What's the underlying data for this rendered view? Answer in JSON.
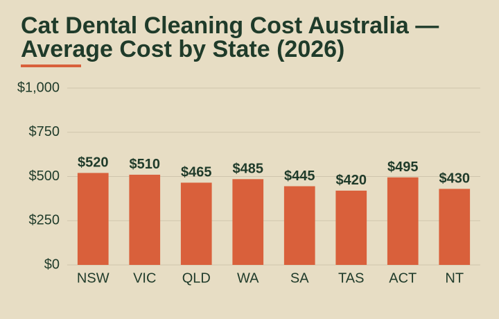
{
  "chart_data": {
    "type": "bar",
    "title": "Cat Dental Cleaning Cost Australia — Average Cost by State (2026)",
    "categories": [
      "NSW",
      "VIC",
      "QLD",
      "WA",
      "SA",
      "TAS",
      "ACT",
      "NT"
    ],
    "values": [
      520,
      510,
      465,
      485,
      445,
      420,
      495,
      430
    ],
    "value_labels": [
      "$520",
      "$510",
      "$465",
      "$485",
      "$445",
      "$420",
      "$495",
      "$430"
    ],
    "color": "#d9603b",
    "ylim": [
      0,
      1000
    ],
    "yticks": [
      {
        "value": 0,
        "label": "$0"
      },
      {
        "value": 250,
        "label": "$250"
      },
      {
        "value": 500,
        "label": "$500"
      },
      {
        "value": 750,
        "label": "$750"
      },
      {
        "value": 1000,
        "label": "$1,000"
      }
    ],
    "grid": true
  }
}
